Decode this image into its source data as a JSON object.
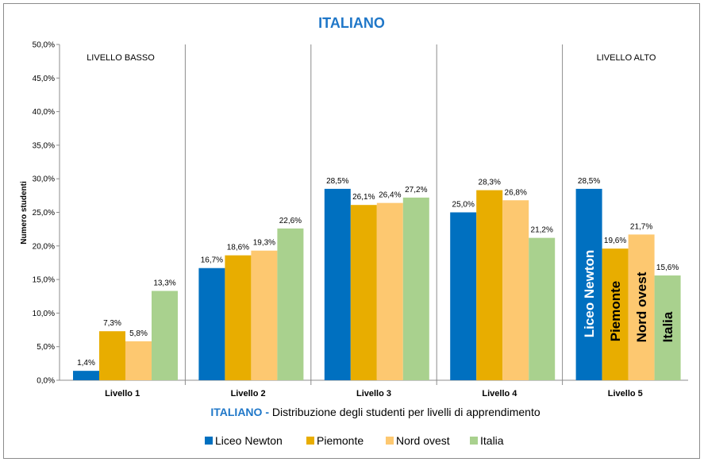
{
  "chart_data": {
    "type": "bar",
    "title": "ITALIANO",
    "ylabel": "Numero studenti",
    "ylim": [
      0,
      50
    ],
    "yticks": [
      "0,0%",
      "5,0%",
      "10,0%",
      "15,0%",
      "20,0%",
      "25,0%",
      "30,0%",
      "35,0%",
      "40,0%",
      "45,0%",
      "50,0%"
    ],
    "categories": [
      "Livello 1",
      "Livello 2",
      "Livello 3",
      "Livello 4",
      "Livello 5"
    ],
    "series": [
      {
        "name": "Liceo Newton",
        "color": "#0070c0",
        "values": [
          1.4,
          16.7,
          28.5,
          25.0,
          28.5
        ],
        "labels": [
          "1,4%",
          "16,7%",
          "28,5%",
          "25,0%",
          "28,5%"
        ]
      },
      {
        "name": "Piemonte",
        "color": "#e8ad00",
        "values": [
          7.3,
          18.6,
          26.1,
          28.3,
          19.6
        ],
        "labels": [
          "7,3%",
          "18,6%",
          "26,1%",
          "28,3%",
          "19,6%"
        ]
      },
      {
        "name": "Nord ovest",
        "color": "#fdc870",
        "values": [
          5.8,
          19.3,
          26.4,
          26.8,
          21.7
        ],
        "labels": [
          "5,8%",
          "19,3%",
          "26,4%",
          "26,8%",
          "21,7%"
        ]
      },
      {
        "name": "Italia",
        "color": "#a9d18e",
        "values": [
          13.3,
          22.6,
          27.2,
          21.2,
          15.6
        ],
        "labels": [
          "13,3%",
          "22,6%",
          "27,2%",
          "21,2%",
          "15,6%"
        ]
      }
    ],
    "annotations": {
      "low_level": "LIVELLO BASSO",
      "high_level": "LIVELLO ALTO"
    },
    "subtitle_prefix": "ITALIANO -",
    "subtitle_rest": " Distribuzione degli studenti per livelli di apprendimento",
    "legend_position": "bottom",
    "grid": false,
    "title_color": "#1f77c8"
  }
}
